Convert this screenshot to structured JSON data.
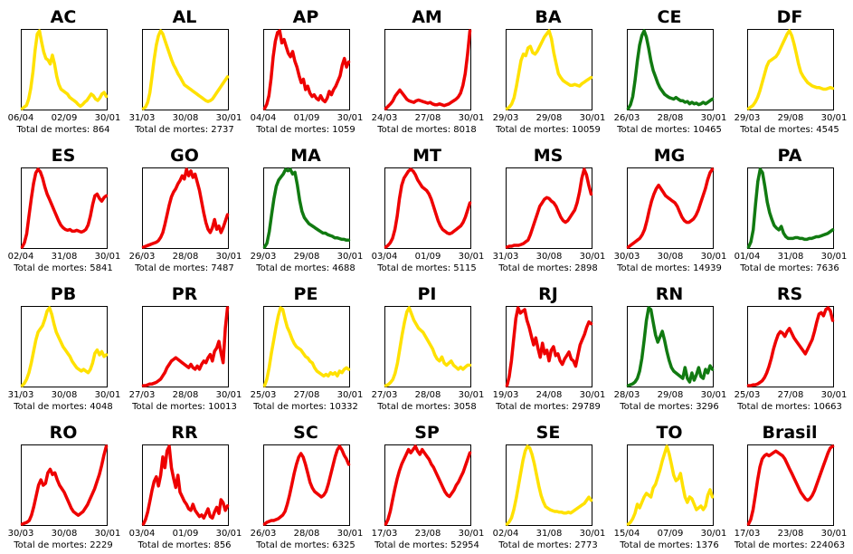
{
  "chart_data": {
    "type": "line",
    "total_prefix": "Total de mortes: ",
    "colors": {
      "yellow": "#ffe100",
      "red": "#ee0000",
      "green": "#117a11"
    },
    "panels": [
      {
        "id": "ac",
        "title": "AC",
        "ticks": [
          "06/04",
          "02/09",
          "30/01"
        ],
        "total": 864,
        "color": "yellow",
        "values": [
          0,
          2,
          4,
          12,
          25,
          45,
          72,
          92,
          96,
          82,
          70,
          62,
          60,
          55,
          66,
          55,
          40,
          30,
          24,
          22,
          20,
          18,
          14,
          12,
          10,
          8,
          5,
          3,
          5,
          8,
          10,
          14,
          18,
          16,
          12,
          10,
          13,
          18,
          20,
          15
        ]
      },
      {
        "id": "al",
        "title": "AL",
        "ticks": [
          "31/03",
          "30/08",
          "30/01"
        ],
        "total": 2737,
        "color": "yellow",
        "values": [
          0,
          2,
          8,
          20,
          40,
          62,
          80,
          92,
          98,
          94,
          86,
          78,
          70,
          62,
          55,
          50,
          44,
          40,
          35,
          30,
          28,
          26,
          24,
          22,
          20,
          18,
          16,
          14,
          12,
          10,
          9,
          10,
          12,
          16,
          20,
          24,
          28,
          32,
          36,
          40
        ]
      },
      {
        "id": "ap",
        "title": "AP",
        "ticks": [
          "04/04",
          "01/09",
          "30/01"
        ],
        "total": 1059,
        "color": "red",
        "values": [
          0,
          5,
          15,
          35,
          60,
          78,
          88,
          90,
          76,
          80,
          72,
          64,
          60,
          66,
          55,
          48,
          38,
          30,
          34,
          22,
          26,
          18,
          14,
          16,
          12,
          10,
          15,
          10,
          8,
          12,
          20,
          16,
          22,
          26,
          32,
          38,
          50,
          58,
          48,
          54
        ]
      },
      {
        "id": "am",
        "title": "AM",
        "ticks": [
          "24/03",
          "27/08",
          "30/01"
        ],
        "total": 8018,
        "color": "red",
        "values": [
          0,
          3,
          6,
          10,
          16,
          20,
          24,
          20,
          16,
          12,
          10,
          9,
          8,
          10,
          11,
          10,
          9,
          8,
          7,
          8,
          6,
          5,
          5,
          6,
          5,
          4,
          5,
          6,
          8,
          10,
          12,
          15,
          20,
          30,
          45,
          70,
          100
        ]
      },
      {
        "id": "ba",
        "title": "BA",
        "ticks": [
          "29/03",
          "29/08",
          "30/01"
        ],
        "total": 10059,
        "color": "yellow",
        "values": [
          0,
          2,
          6,
          14,
          28,
          45,
          62,
          70,
          68,
          78,
          80,
          72,
          70,
          74,
          80,
          86,
          92,
          96,
          100,
          90,
          72,
          58,
          45,
          40,
          36,
          34,
          32,
          30,
          30,
          31,
          30,
          29,
          32,
          34,
          36,
          38,
          40
        ]
      },
      {
        "id": "ce",
        "title": "CE",
        "ticks": [
          "26/03",
          "28/08",
          "30/01"
        ],
        "total": 10465,
        "color": "green",
        "values": [
          0,
          5,
          15,
          35,
          60,
          80,
          92,
          98,
          90,
          76,
          60,
          48,
          40,
          32,
          26,
          22,
          18,
          16,
          14,
          13,
          12,
          14,
          12,
          10,
          10,
          8,
          9,
          6,
          8,
          6,
          7,
          5,
          6,
          8,
          6,
          8,
          10,
          12
        ]
      },
      {
        "id": "df",
        "title": "DF",
        "ticks": [
          "29/03",
          "29/08",
          "30/01"
        ],
        "total": 4545,
        "color": "yellow",
        "values": [
          0,
          2,
          4,
          8,
          14,
          22,
          32,
          42,
          52,
          58,
          60,
          62,
          64,
          68,
          74,
          80,
          86,
          92,
          96,
          90,
          80,
          68,
          55,
          45,
          40,
          36,
          32,
          30,
          28,
          27,
          26,
          26,
          25,
          24,
          24,
          25,
          26,
          25
        ]
      }
    ]
  }
}
